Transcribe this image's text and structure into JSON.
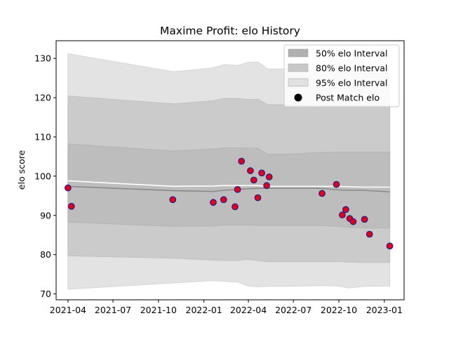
{
  "chart_data": {
    "type": "area",
    "title": "Maxime Profit: elo History",
    "ylabel": "elo score",
    "xlabel": "",
    "ylim": [
      68.5,
      134.5
    ],
    "xlim": [
      "2021-03-08",
      "2023-02-10"
    ],
    "y_ticks": [
      70,
      80,
      90,
      100,
      110,
      120,
      130
    ],
    "x_ticks": [
      "2021-04",
      "2021-07",
      "2021-10",
      "2022-01",
      "2022-04",
      "2022-07",
      "2022-10",
      "2023-01"
    ],
    "grid": false,
    "legend_position": "top-right",
    "legend": [
      {
        "label": "50% elo Interval",
        "kind": "patch",
        "color": "#b0b0b0"
      },
      {
        "label": "80% elo Interval",
        "kind": "patch",
        "color": "#c8c8c8"
      },
      {
        "label": "95% elo Interval",
        "kind": "patch",
        "color": "#e1e1e1"
      },
      {
        "label": "Post Match elo",
        "kind": "marker",
        "color": "#000000"
      }
    ],
    "colors": {
      "band95": "#e3e3e3",
      "band80": "#cbcbcb",
      "band50": "#bdbdbd",
      "mean_line": "#ffffff",
      "median_line": "#8a8a8a",
      "marker_fill": "#e0001b",
      "marker_edge": "#2a1e8a"
    },
    "bands": {
      "x": [
        "2021-04-01",
        "2021-11-01",
        "2022-01-20",
        "2022-02-10",
        "2022-03-10",
        "2022-04-01",
        "2022-04-20",
        "2022-05-10",
        "2022-06-15",
        "2022-08-25",
        "2022-10-01",
        "2022-10-20",
        "2022-11-20",
        "2023-01-12"
      ],
      "p95_upper": [
        131.2,
        126.6,
        127.6,
        128.4,
        128.2,
        129.0,
        129.1,
        127.3,
        127.3,
        127.0,
        126.8,
        126.2,
        126.2,
        126.2
      ],
      "p95_lower": [
        71.2,
        72.8,
        73.4,
        73.2,
        73.0,
        72.0,
        71.8,
        71.9,
        71.9,
        72.1,
        72.0,
        71.5,
        71.9,
        72.0
      ],
      "p80_upper": [
        120.4,
        118.4,
        119.2,
        119.8,
        119.8,
        119.5,
        119.6,
        118.2,
        118.2,
        118.0,
        118.0,
        117.9,
        117.9,
        117.9
      ],
      "p80_lower": [
        79.7,
        79.1,
        78.6,
        78.5,
        78.5,
        78.8,
        78.5,
        78.2,
        78.2,
        78.2,
        78.2,
        78.1,
        78.0,
        78.0
      ],
      "p50_upper": [
        108.2,
        106.4,
        106.9,
        107.2,
        107.2,
        107.2,
        107.1,
        105.6,
        105.6,
        106.0,
        106.1,
        106.1,
        106.1,
        106.1
      ],
      "p50_lower": [
        88.3,
        87.2,
        87.3,
        87.5,
        87.5,
        87.6,
        87.4,
        87.4,
        87.4,
        87.4,
        87.2,
        87.0,
        86.8,
        86.8
      ],
      "mean": [
        98.8,
        97.4,
        97.5,
        97.6,
        97.6,
        97.6,
        97.6,
        97.4,
        97.4,
        97.4,
        97.4,
        97.3,
        97.2,
        97.2
      ],
      "median": [
        97.4,
        96.3,
        96.1,
        96.4,
        96.6,
        96.8,
        96.9,
        96.9,
        96.9,
        96.9,
        96.5,
        96.4,
        96.4,
        96.0
      ]
    },
    "series": [
      {
        "kind": "scatter",
        "x": [
          "2021-04-01",
          "2021-04-08",
          "2021-10-30",
          "2022-01-20",
          "2022-02-10",
          "2022-03-05",
          "2022-03-10",
          "2022-03-18",
          "2022-04-05",
          "2022-04-12",
          "2022-04-20",
          "2022-04-28",
          "2022-05-08",
          "2022-05-13",
          "2022-08-28",
          "2022-09-26",
          "2022-10-08",
          "2022-10-15",
          "2022-10-23",
          "2022-10-30",
          "2022-11-22",
          "2022-12-02",
          "2023-01-12"
        ],
        "y": [
          97.0,
          92.3,
          94.0,
          93.3,
          94.0,
          92.2,
          96.6,
          103.8,
          101.4,
          99.0,
          94.5,
          100.8,
          97.6,
          99.8,
          95.6,
          97.9,
          90.1,
          91.5,
          89.2,
          88.4,
          89.0,
          85.2,
          82.2
        ]
      }
    ]
  }
}
